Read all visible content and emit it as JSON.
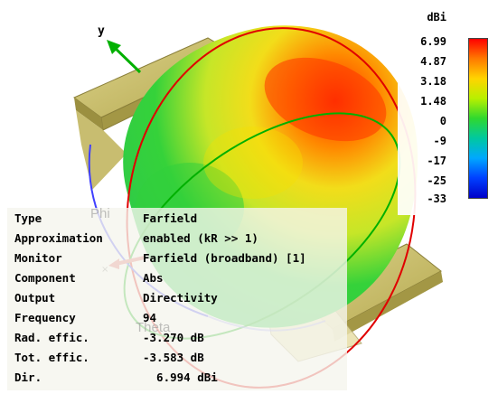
{
  "axis": {
    "y_label": "y",
    "phi_label": "Phi",
    "theta_label": "Theta"
  },
  "legend": {
    "unit": "dBi",
    "ticks": [
      "6.99",
      "4.87",
      "3.18",
      "1.48",
      "0",
      "-9",
      "-17",
      "-25",
      "-33"
    ],
    "colors": [
      "#ff0000",
      "#ff7a00",
      "#ffd400",
      "#b8f000",
      "#2fd82f",
      "#00c8a0",
      "#00a8ff",
      "#0040ff",
      "#0000c8"
    ]
  },
  "info": {
    "rows": [
      {
        "label": "Type",
        "value": "Farfield"
      },
      {
        "label": "Approximation",
        "value": "enabled (kR >> 1)"
      },
      {
        "label": "Monitor",
        "value": "Farfield (broadband) [1]"
      },
      {
        "label": "Component",
        "value": "Abs"
      },
      {
        "label": "Output",
        "value": "Directivity"
      },
      {
        "label": "Frequency",
        "value": "94"
      },
      {
        "label": "Rad. effic.",
        "value": "-3.270 dB"
      },
      {
        "label": "Tot. effic.",
        "value": "-3.583 dB"
      },
      {
        "label": "Dir.",
        "value": "  6.994 dBi"
      }
    ]
  },
  "colors": {
    "panel_bg": "#f5f5ee",
    "antenna": "#c8bd6a",
    "axis_green": "#00b000"
  }
}
